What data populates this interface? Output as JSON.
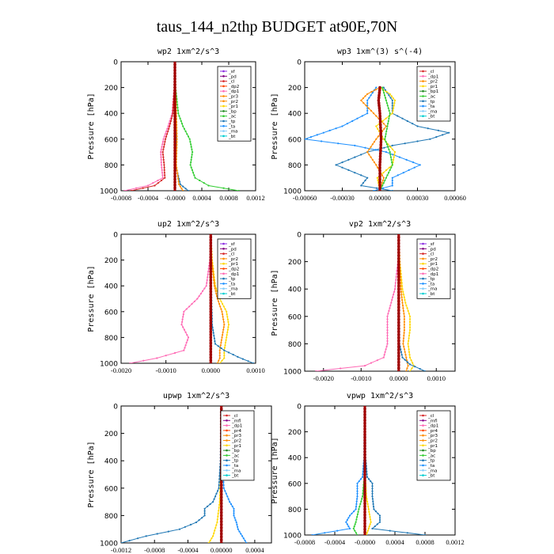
{
  "figure_title": "taus_144_n2thp  BUDGET at90E,70N",
  "colors": {
    "sf": "#8a2be2",
    "pd": "#800080",
    "cl": "#d62728",
    "dp2": "#ff4500",
    "dp1": "#ff69b4",
    "pr3": "#ff8c00",
    "pr2": "#ff8c00",
    "pr1": "#ffd700",
    "pr4": "#ff4500",
    "bp": "#228b22",
    "ac": "#32cd32",
    "tp": "#1f77b4",
    "ta": "#1e90ff",
    "ma": "#87cefa",
    "bt": "#00ced1",
    "mfl": "#8b008b",
    "thick": "#a00000"
  },
  "chart_data": [
    {
      "type": "line",
      "title": "wp2  1xm^2/s^3",
      "ylabel": "Pressure [hPa]",
      "ylim": [
        1000,
        0
      ],
      "yticks": [
        0,
        200,
        400,
        600,
        800,
        1000
      ],
      "xlim": [
        -0.0008,
        0.0012
      ],
      "xticks": [
        "-0.0008",
        "-0.0004",
        "-0.0000",
        "0.0004",
        "0.0008",
        "0.0012"
      ],
      "xtick_values": [
        -0.0008,
        -0.0004,
        0.0,
        0.0004,
        0.0008,
        0.0012
      ],
      "legend": [
        "_sf",
        "_pd",
        "_cl",
        "_dp2",
        "_dp1",
        "_pr3",
        "_pr2",
        "_pr1",
        "_bp",
        "_ac",
        "_tp",
        "_ta",
        "_ma",
        "_bt"
      ],
      "legend_keys": [
        "sf",
        "pd",
        "cl",
        "dp2",
        "dp1",
        "pr3",
        "pr2",
        "pr1",
        "bp",
        "ac",
        "tp",
        "ta",
        "ma",
        "bt"
      ],
      "series": [
        {
          "key": "ac",
          "p": [
            0,
            200,
            400,
            500,
            600,
            700,
            800,
            900,
            960,
            1000
          ],
          "v": [
            0,
            1e-05,
            5e-05,
            0.00012,
            0.00022,
            0.00026,
            0.00023,
            0.0003,
            0.0005,
            0.00095
          ]
        },
        {
          "key": "dp1",
          "p": [
            0,
            200,
            400,
            500,
            600,
            700,
            800,
            900,
            960,
            1000
          ],
          "v": [
            0,
            -1e-05,
            -4e-05,
            -0.0001,
            -0.00017,
            -0.00021,
            -0.0002,
            -0.00018,
            -0.0004,
            -0.00075
          ]
        },
        {
          "key": "cl",
          "p": [
            0,
            200,
            400,
            500,
            600,
            700,
            800,
            900,
            960,
            1000
          ],
          "v": [
            0,
            -1e-05,
            -3e-05,
            -8e-05,
            -0.00014,
            -0.00018,
            -0.00016,
            -0.00015,
            -0.0003,
            -0.00065
          ]
        },
        {
          "key": "tp",
          "p": [
            0,
            200,
            400,
            600,
            800,
            950,
            1000
          ],
          "v": [
            0,
            0.0,
            1e-05,
            2e-05,
            1e-05,
            8e-05,
            0.0002
          ]
        },
        {
          "key": "pr2",
          "p": [
            0,
            200,
            400,
            600,
            800,
            950,
            1000
          ],
          "v": [
            0,
            1e-05,
            2e-05,
            3e-05,
            2e-05,
            6e-05,
            0.00012
          ]
        },
        {
          "key": "pd",
          "p": [
            0,
            200,
            400,
            600,
            800,
            1000
          ],
          "v": [
            0,
            0,
            0,
            0,
            0,
            0
          ],
          "thick": true
        }
      ]
    },
    {
      "type": "line",
      "title": "wp3  1xm^(3) s^(-4)",
      "ylabel": "Pressure [hPa]",
      "ylim": [
        1000,
        0
      ],
      "yticks": [
        0,
        200,
        400,
        600,
        800,
        1000
      ],
      "xlim": [
        -0.0006,
        0.0006
      ],
      "xticks": [
        "-0.00060",
        "-0.00030",
        "0.00000",
        "0.00030",
        "0.00060"
      ],
      "xtick_values": [
        -0.0006,
        -0.0003,
        0.0,
        0.0003,
        0.0006
      ],
      "legend": [
        "_cl",
        "_dp1",
        "_pr2",
        "_pr1",
        "_bp1",
        "_ac",
        "_tp",
        "_ta",
        "_ma",
        "_bt"
      ],
      "legend_keys": [
        "cl",
        "dp1",
        "pr2",
        "pr1",
        "bp",
        "ac",
        "tp",
        "ta",
        "ma",
        "bt"
      ],
      "series": [
        {
          "key": "tp",
          "p": [
            200,
            300,
            400,
            500,
            550,
            600,
            650,
            700,
            800,
            900,
            960,
            1000
          ],
          "v": [
            3e-05,
            0.0001,
            0.0001,
            0.0003,
            0.00055,
            0.0004,
            0.0001,
            -0.0001,
            -0.00035,
            -0.0001,
            -0.00015,
            0.0001
          ]
        },
        {
          "key": "ta",
          "p": [
            200,
            300,
            400,
            500,
            550,
            600,
            650,
            700,
            800,
            900,
            960,
            1000
          ],
          "v": [
            -3e-05,
            -0.0001,
            -0.0001,
            -0.0003,
            -0.00045,
            -0.0006,
            -0.0002,
            5e-05,
            0.00032,
            0.0001,
            0.0001,
            -5e-05
          ]
        },
        {
          "key": "pr2",
          "p": [
            200,
            250,
            300,
            400,
            500,
            600,
            700,
            800,
            900,
            1000
          ],
          "v": [
            0.0,
            -0.0001,
            -0.00015,
            -5e-05,
            5e-05,
            -3e-05,
            -0.0001,
            -3e-05,
            3e-05,
            0.0
          ]
        },
        {
          "key": "pr1",
          "p": [
            200,
            250,
            300,
            400,
            500,
            600,
            700,
            800,
            900,
            1000
          ],
          "v": [
            0.0,
            8e-05,
            0.00012,
            0.0001,
            -3e-05,
            3e-05,
            0.00012,
            0.0001,
            -2e-05,
            0.0
          ]
        },
        {
          "key": "ac",
          "p": [
            200,
            300,
            400,
            500,
            600,
            700,
            800,
            900,
            1000
          ],
          "v": [
            2e-05,
            5e-05,
            8e-05,
            6e-05,
            4e-05,
            8e-05,
            0.0001,
            5e-05,
            0.0
          ]
        },
        {
          "key": "cl",
          "p": [
            200,
            300,
            400,
            600,
            800,
            1000
          ],
          "v": [
            0,
            -1e-05,
            0,
            1e-05,
            0,
            0
          ],
          "thick": true
        }
      ]
    },
    {
      "type": "line",
      "title": "up2  1xm^2/s^3",
      "ylabel": "Pressure [hPa]",
      "ylim": [
        1000,
        0
      ],
      "yticks": [
        0,
        200,
        400,
        600,
        800,
        1000
      ],
      "xlim": [
        -0.002,
        0.001
      ],
      "xticks": [
        "-0.0020",
        "-0.0010",
        "0.0000",
        "0.0010"
      ],
      "xtick_values": [
        -0.002,
        -0.001,
        0.0,
        0.001
      ],
      "legend": [
        "_sf",
        "_pd",
        "_cl",
        "_pr2",
        "_pr1",
        "_dp2",
        "_dp1",
        "_tp",
        "_ta",
        "_ma",
        "_bt"
      ],
      "legend_keys": [
        "sf",
        "pd",
        "cl",
        "pr2",
        "pr1",
        "dp2",
        "dp1",
        "tp",
        "ta",
        "ma",
        "bt"
      ],
      "series": [
        {
          "key": "dp1",
          "p": [
            0,
            200,
            400,
            500,
            600,
            700,
            800,
            900,
            960,
            1000
          ],
          "v": [
            0,
            -2e-05,
            -0.0001,
            -0.0003,
            -0.0006,
            -0.00065,
            -0.0005,
            -0.0006,
            -0.0012,
            -0.0018
          ]
        },
        {
          "key": "pr1",
          "p": [
            0,
            200,
            400,
            500,
            600,
            700,
            800,
            900,
            960,
            1000
          ],
          "v": [
            0,
            3e-05,
            0.0001,
            0.0002,
            0.00035,
            0.0004,
            0.00035,
            0.0003,
            0.0003,
            0.0002
          ]
        },
        {
          "key": "pr2",
          "p": [
            0,
            200,
            400,
            500,
            600,
            700,
            800,
            900,
            960,
            1000
          ],
          "v": [
            0,
            2e-05,
            8e-05,
            0.00015,
            0.00025,
            0.0003,
            0.00025,
            0.0002,
            0.0002,
            0.00015
          ]
        },
        {
          "key": "tp",
          "p": [
            0,
            400,
            700,
            850,
            900,
            950,
            1000
          ],
          "v": [
            0,
            1e-05,
            3e-05,
            0.0001,
            0.0003,
            0.0006,
            0.00095
          ]
        },
        {
          "key": "cl",
          "p": [
            0,
            200,
            400,
            600,
            800,
            1000
          ],
          "v": [
            0,
            0,
            0,
            0,
            0,
            0
          ],
          "thick": true
        }
      ]
    },
    {
      "type": "line",
      "title": "vp2  1xm^2/s^3",
      "ylabel": "Pressure [hPa]",
      "ylim": [
        1000,
        0
      ],
      "yticks": [
        0,
        200,
        400,
        600,
        800,
        1000
      ],
      "xlim": [
        -0.0025,
        0.0015
      ],
      "xticks": [
        "-0.0020",
        "-0.0010",
        "0.0000",
        "0.0010"
      ],
      "xtick_values": [
        -0.002,
        -0.001,
        0.0,
        0.001
      ],
      "legend": [
        "_sf",
        "_pd",
        "_cl",
        "_pr2",
        "_pr1",
        "_dp2",
        "_dp1",
        "_tp",
        "_ta",
        "_ma",
        "_bt"
      ],
      "legend_keys": [
        "sf",
        "pd",
        "cl",
        "pr2",
        "pr1",
        "dp2",
        "dp1",
        "tp",
        "ta",
        "ma",
        "bt"
      ],
      "series": [
        {
          "key": "dp1",
          "p": [
            0,
            200,
            400,
            500,
            600,
            700,
            800,
            900,
            960,
            1000
          ],
          "v": [
            0,
            -2e-05,
            -0.0001,
            -0.0002,
            -0.0003,
            -0.0003,
            -0.0003,
            -0.0004,
            -0.0009,
            -0.0022
          ]
        },
        {
          "key": "pr1",
          "p": [
            0,
            200,
            400,
            500,
            600,
            700,
            800,
            900,
            960,
            1000
          ],
          "v": [
            0,
            3e-05,
            0.0001,
            0.00018,
            0.0003,
            0.0003,
            0.00025,
            0.0003,
            0.0004,
            0.0003
          ]
        },
        {
          "key": "pr2",
          "p": [
            0,
            200,
            400,
            500,
            600,
            700,
            800,
            900,
            960,
            1000
          ],
          "v": [
            0,
            2e-05,
            6e-05,
            0.0001,
            0.00015,
            0.00015,
            0.00012,
            0.0002,
            0.00025,
            0.0002
          ]
        },
        {
          "key": "tp",
          "p": [
            0,
            400,
            800,
            900,
            950,
            1000
          ],
          "v": [
            0,
            1e-05,
            2e-05,
            0.0001,
            0.0003,
            0.0007
          ]
        },
        {
          "key": "cl",
          "p": [
            0,
            200,
            400,
            600,
            800,
            1000
          ],
          "v": [
            0,
            0,
            0,
            0,
            0,
            0
          ],
          "thick": true
        }
      ]
    },
    {
      "type": "line",
      "title": "upwp  1xm^2/s^3",
      "ylabel": "Pressure [hPa]",
      "ylim": [
        1000,
        0
      ],
      "yticks": [
        0,
        200,
        400,
        600,
        800,
        1000
      ],
      "xlim": [
        -0.0012,
        0.0006
      ],
      "xticks": [
        "-0.0012",
        "-0.0008",
        "-0.0004",
        "0.00000",
        "0.0004"
      ],
      "xtick_values": [
        -0.0012,
        -0.0008,
        -0.0004,
        0.0,
        0.0004
      ],
      "legend": [
        "_cl",
        "_mfl",
        "_dp1",
        "_pr4",
        "_pr3",
        "_pr2",
        "_pr1",
        "_bp",
        "_ac",
        "_tp",
        "_ta",
        "_ma",
        "_bt"
      ],
      "legend_keys": [
        "cl",
        "mfl",
        "dp1",
        "pr4",
        "pr3",
        "pr2",
        "pr1",
        "bp",
        "ac",
        "tp",
        "ta",
        "ma",
        "bt"
      ],
      "series": [
        {
          "key": "tp",
          "p": [
            0,
            400,
            600,
            700,
            750,
            800,
            850,
            900,
            950,
            1000
          ],
          "v": [
            0,
            -1e-05,
            -3e-05,
            -0.0001,
            -0.0002,
            -0.0002,
            -0.0003,
            -0.0005,
            -0.0009,
            -0.0012
          ]
        },
        {
          "key": "ta",
          "p": [
            0,
            400,
            600,
            700,
            750,
            800,
            850,
            900,
            950,
            1000
          ],
          "v": [
            0,
            1e-05,
            3e-05,
            0.0001,
            0.00015,
            0.00015,
            0.00018,
            0.0002,
            0.00025,
            0.0003
          ]
        },
        {
          "key": "pr1",
          "p": [
            0,
            400,
            700,
            850,
            950,
            1000
          ],
          "v": [
            0,
            0.0,
            -2e-05,
            -5e-05,
            -0.0001,
            -0.00015
          ]
        },
        {
          "key": "cl",
          "p": [
            0,
            200,
            400,
            600,
            800,
            1000
          ],
          "v": [
            0,
            0,
            0,
            0,
            0,
            0
          ],
          "thick": true
        }
      ]
    },
    {
      "type": "line",
      "title": "vpwp  1xm^2/s^3",
      "ylabel": "Pressure [hPa]",
      "ylim": [
        1000,
        0
      ],
      "yticks": [
        0,
        200,
        400,
        600,
        800,
        1000
      ],
      "xlim": [
        -0.0008,
        0.0012
      ],
      "xticks": [
        "-0.0008",
        "-0.0004",
        "-0.0000",
        "0.0004",
        "0.0008",
        "0.0012"
      ],
      "xtick_values": [
        -0.0008,
        -0.0004,
        0.0,
        0.0004,
        0.0008,
        0.0012
      ],
      "legend": [
        "_cl",
        "_mfl",
        "_dp1",
        "_pr4",
        "_pr3",
        "_pr2",
        "_pr1",
        "_bp",
        "_ac",
        "_tp",
        "_ta",
        "_ma",
        "_bt"
      ],
      "legend_keys": [
        "cl",
        "mfl",
        "dp1",
        "pr4",
        "pr3",
        "pr2",
        "pr1",
        "bp",
        "ac",
        "tp",
        "ta",
        "ma",
        "bt"
      ],
      "series": [
        {
          "key": "tp",
          "p": [
            0,
            400,
            550,
            600,
            700,
            800,
            850,
            900,
            950,
            1000
          ],
          "v": [
            0,
            1e-05,
            3e-05,
            0.0001,
            0.0001,
            0.00012,
            0.0002,
            0.0002,
            0.0001,
            0.0008
          ]
        },
        {
          "key": "ta",
          "p": [
            0,
            400,
            550,
            600,
            700,
            800,
            850,
            900,
            950,
            1000
          ],
          "v": [
            0,
            -1e-05,
            -3e-05,
            -0.0001,
            -0.0001,
            -0.00012,
            -0.0002,
            -0.00025,
            -0.0002,
            -0.0007
          ]
        },
        {
          "key": "ac",
          "p": [
            0,
            500,
            700,
            800,
            900,
            950,
            1000
          ],
          "v": [
            0,
            0,
            -3e-05,
            -8e-05,
            -0.00012,
            -0.00015,
            -0.0001
          ]
        },
        {
          "key": "pr1",
          "p": [
            0,
            500,
            700,
            800,
            900,
            950,
            1000
          ],
          "v": [
            0,
            0,
            2e-05,
            5e-05,
            8e-05,
            5e-05,
            2e-05
          ]
        },
        {
          "key": "cl",
          "p": [
            0,
            200,
            400,
            600,
            800,
            1000
          ],
          "v": [
            0,
            0,
            0,
            0,
            0,
            0
          ],
          "thick": true
        }
      ]
    }
  ]
}
